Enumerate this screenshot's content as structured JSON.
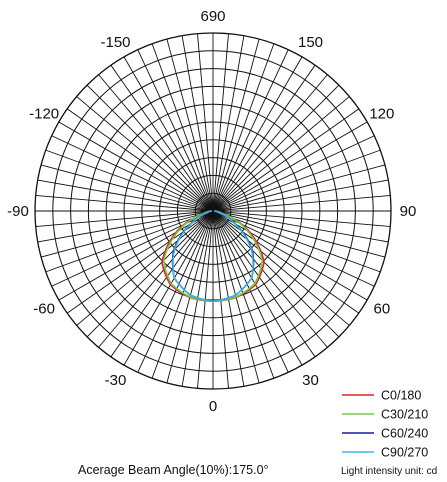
{
  "chart_data": {
    "type": "polar",
    "title": "",
    "peak_label": "690",
    "radial_max": 690,
    "rings": 10,
    "spokes_deg_step": 5,
    "angle_labels": [
      "0",
      "30",
      "60",
      "90",
      "120",
      "150",
      "690",
      "-150",
      "-120",
      "-90",
      "-60",
      "-30"
    ],
    "series": [
      {
        "name": "C0/180",
        "color": "#e02020",
        "angles": [
          0,
          15,
          30,
          45,
          60,
          75,
          90
        ],
        "values": [
          350,
          347,
          330,
          280,
          165,
          40,
          5
        ]
      },
      {
        "name": "C30/210",
        "color": "#7ac943",
        "angles": [
          0,
          15,
          30,
          45,
          60,
          75,
          90
        ],
        "values": [
          350,
          345,
          325,
          270,
          155,
          37,
          5
        ]
      },
      {
        "name": "C60/240",
        "color": "#1a1a9c",
        "angles": [
          0,
          15,
          30,
          45,
          60,
          75,
          90
        ],
        "values": [
          350,
          338,
          300,
          215,
          100,
          25,
          5
        ]
      },
      {
        "name": "C90/270",
        "color": "#3ab7e8",
        "angles": [
          0,
          15,
          30,
          45,
          60,
          75,
          90
        ],
        "values": [
          350,
          338,
          300,
          210,
          95,
          22,
          5
        ]
      }
    ],
    "beam_angle_text": "Acerage Beam Angle(10%):175.0°",
    "unit_text": "Light intensity unit: cd"
  }
}
